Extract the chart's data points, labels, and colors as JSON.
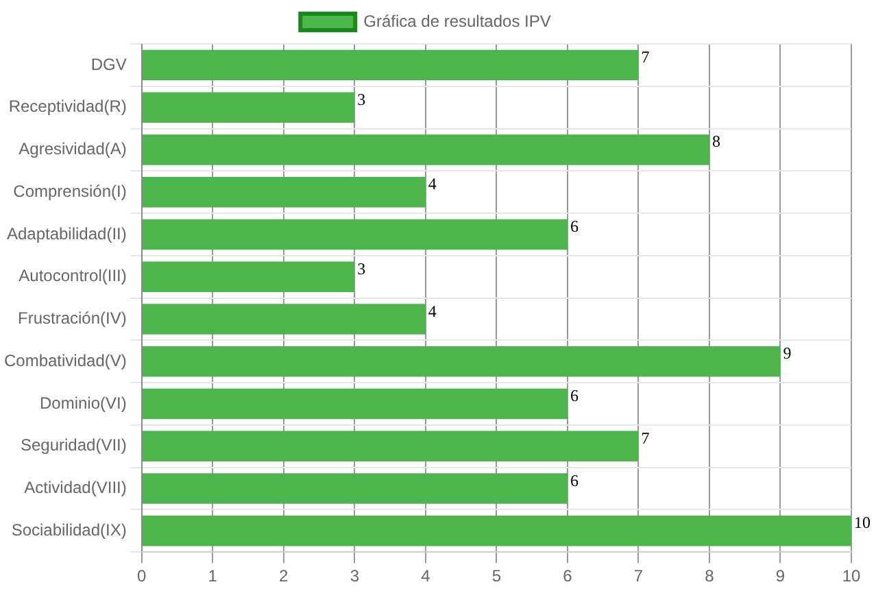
{
  "chart_data": {
    "type": "bar",
    "orientation": "horizontal",
    "categories": [
      "DGV",
      "Receptividad(R)",
      "Agresividad(A)",
      "Comprensión(I)",
      "Adaptabilidad(II)",
      "Autocontrol(III)",
      "Frustración(IV)",
      "Combatividad(V)",
      "Dominio(VI)",
      "Seguridad(VII)",
      "Actividad(VIII)",
      "Sociabilidad(IX)"
    ],
    "series": [
      {
        "name": "Gráfica de resultados IPV",
        "color": "#4cb54c",
        "values": [
          7,
          3,
          8,
          4,
          6,
          3,
          4,
          9,
          6,
          7,
          6,
          10
        ]
      }
    ],
    "xlim": [
      0,
      10
    ],
    "xticks": [
      0,
      1,
      2,
      3,
      4,
      5,
      6,
      7,
      8,
      9,
      10
    ],
    "grid": true,
    "legend": "top",
    "data_labels": true
  }
}
